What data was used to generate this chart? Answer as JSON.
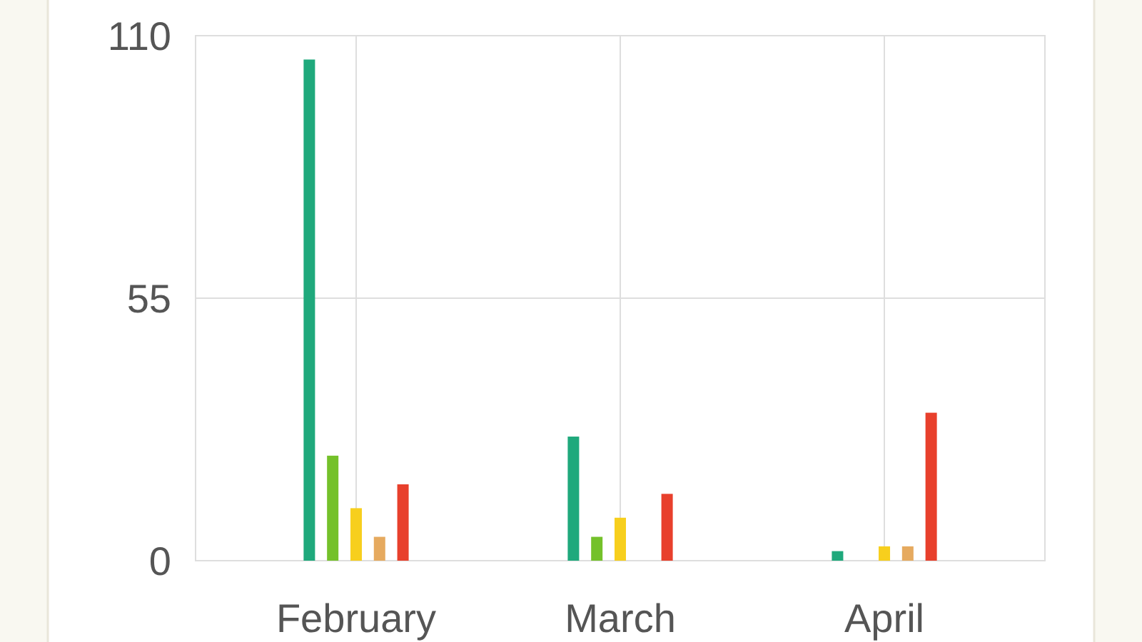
{
  "chart_data": {
    "type": "bar",
    "categories": [
      "February",
      "March",
      "April"
    ],
    "series": [
      {
        "color": "#1fa97c",
        "values": [
          105,
          26,
          2
        ]
      },
      {
        "color": "#74c12a",
        "values": [
          22,
          5,
          null
        ]
      },
      {
        "color": "#f7cf1d",
        "values": [
          11,
          9,
          3
        ]
      },
      {
        "color": "#e6aa5f",
        "values": [
          5,
          null,
          3
        ]
      },
      {
        "color": "#e8402c",
        "values": [
          16,
          14,
          31
        ]
      }
    ],
    "ylim": [
      0,
      110
    ],
    "yticks": [
      0,
      55,
      110
    ],
    "grid": true
  }
}
